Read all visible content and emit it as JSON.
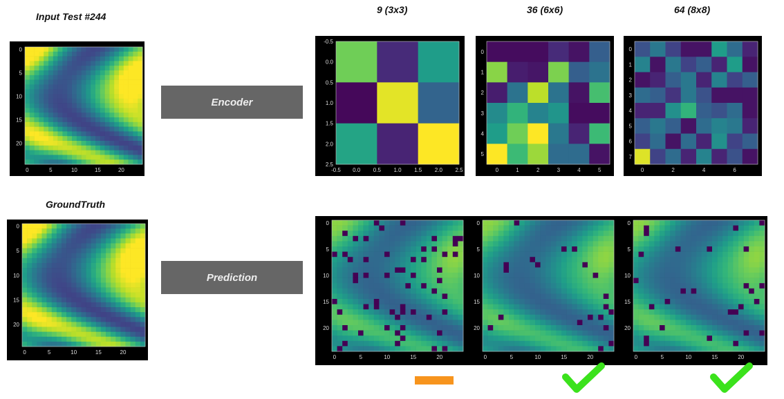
{
  "titles": {
    "input": "Input Test #244",
    "ground_truth": "GroundTruth",
    "col1": "9 (3x3)",
    "col2": "36 (6x6)",
    "col3": "64 (8x8)"
  },
  "stages": {
    "encoder": "Encoder",
    "prediction": "Prediction"
  },
  "axes": {
    "field_ticks": [
      "0",
      "5",
      "10",
      "15",
      "20"
    ],
    "enc3_xticks": [
      "-0.5",
      "0.0",
      "0.5",
      "1.0",
      "1.5",
      "2.0",
      "2.5"
    ],
    "enc3_yticks": [
      "-0.5",
      "0.0",
      "0.5",
      "1.0",
      "1.5",
      "2.0",
      "2.5"
    ],
    "enc6_xticks": [
      "0",
      "1",
      "2",
      "3",
      "4",
      "5"
    ],
    "enc6_yticks": [
      "0",
      "1",
      "2",
      "3",
      "4",
      "5"
    ],
    "enc8_xticks": [
      "0",
      "2",
      "4",
      "6"
    ],
    "enc8_yticks": [
      "0",
      "1",
      "2",
      "3",
      "4",
      "5",
      "6",
      "7"
    ]
  },
  "encoder_grids": {
    "g3": [
      [
        0.78,
        0.12,
        0.55
      ],
      [
        0.02,
        0.96,
        0.32
      ],
      [
        0.58,
        0.1,
        1.0
      ]
    ],
    "g6": [
      [
        0.03,
        0.03,
        0.03,
        0.12,
        0.05,
        0.3
      ],
      [
        0.82,
        0.08,
        0.06,
        0.8,
        0.3,
        0.38
      ],
      [
        0.08,
        0.38,
        0.9,
        0.38,
        0.05,
        0.7
      ],
      [
        0.48,
        0.65,
        0.45,
        0.52,
        0.03,
        0.03
      ],
      [
        0.55,
        0.78,
        1.0,
        0.4,
        0.1,
        0.68
      ],
      [
        1.0,
        0.68,
        0.85,
        0.35,
        0.35,
        0.05
      ]
    ],
    "g8": [
      [
        0.25,
        0.4,
        0.2,
        0.05,
        0.05,
        0.55,
        0.35,
        0.1
      ],
      [
        0.45,
        0.05,
        0.4,
        0.2,
        0.3,
        0.1,
        0.55,
        0.05
      ],
      [
        0.05,
        0.1,
        0.3,
        0.4,
        0.1,
        0.45,
        0.2,
        0.3
      ],
      [
        0.35,
        0.3,
        0.15,
        0.4,
        0.25,
        0.05,
        0.05,
        0.05
      ],
      [
        0.1,
        0.1,
        0.5,
        0.65,
        0.3,
        0.25,
        0.35,
        0.05
      ],
      [
        0.3,
        0.4,
        0.3,
        0.05,
        0.35,
        0.45,
        0.4,
        0.1
      ],
      [
        0.2,
        0.35,
        0.05,
        0.35,
        0.1,
        0.5,
        0.2,
        0.3
      ],
      [
        0.95,
        0.2,
        0.35,
        0.1,
        0.45,
        0.1,
        0.25,
        0.05
      ]
    ]
  },
  "outcomes": [
    {
      "result": "partial",
      "icon": "dash-icon",
      "color": "#f7941d"
    },
    {
      "result": "pass",
      "icon": "checkmark-icon",
      "color": "#3be21c"
    },
    {
      "result": "pass",
      "icon": "checkmark-icon",
      "color": "#3be21c"
    }
  ],
  "colors": {
    "box": "#666666",
    "background": "#000000"
  }
}
